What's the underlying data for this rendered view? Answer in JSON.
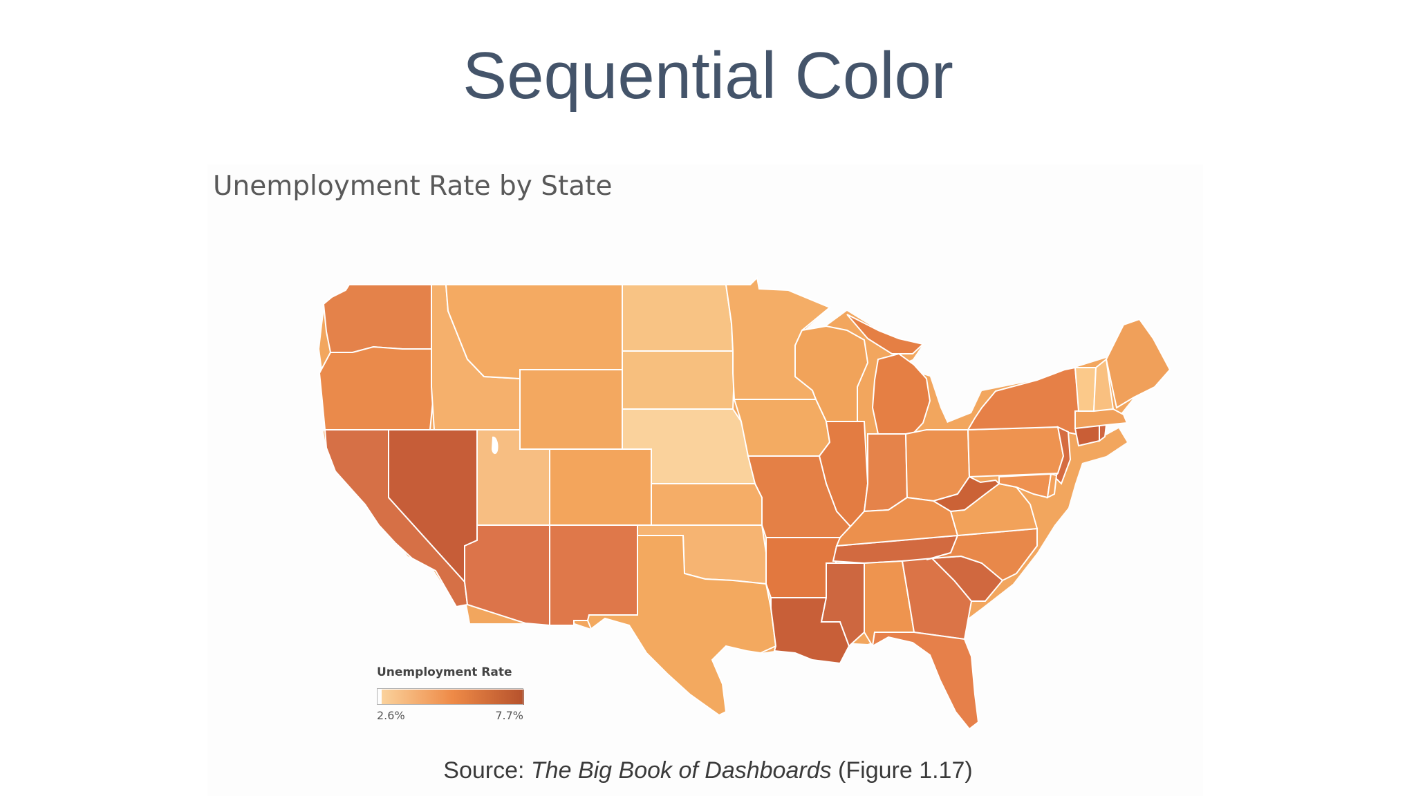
{
  "slide": {
    "title": "Sequential Color",
    "source_prefix": "Source: ",
    "source_book": "The Big Book of Dashboards",
    "source_suffix": " (Figure 1.17)"
  },
  "map": {
    "title": "Unemployment Rate by State",
    "legend_title": "Unemployment Rate",
    "legend_min_label": "2.6%",
    "legend_max_label": "7.7%",
    "color_low": "#fad29c",
    "color_mid": "#ee8a47",
    "color_high": "#b5512c",
    "land_color": "#f2a65e",
    "border_color": "#ffffff"
  }
}
